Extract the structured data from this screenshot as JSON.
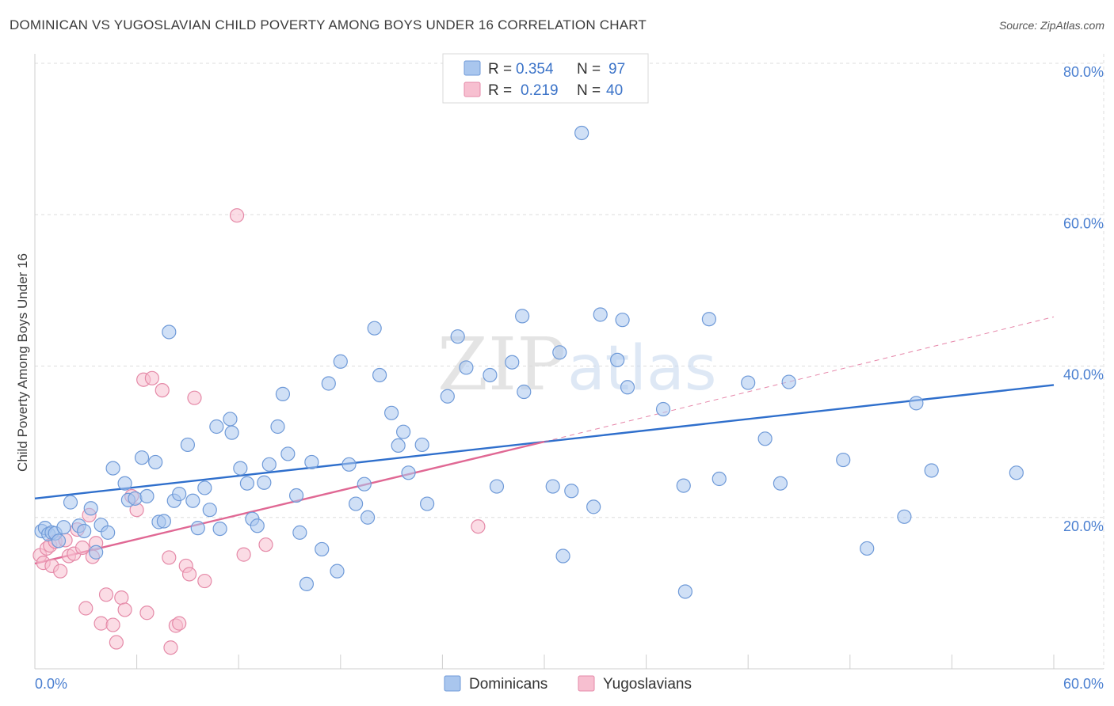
{
  "title": "DOMINICAN VS YUGOSLAVIAN CHILD POVERTY AMONG BOYS UNDER 16 CORRELATION CHART",
  "source": "Source: ZipAtlas.com",
  "watermark": {
    "zip": "ZIP",
    "atlas": "atlas"
  },
  "colors": {
    "dominicans_fill": "#a9c6ee",
    "dominicans_stroke": "#6f9ad8",
    "dominicans_line": "#2f6fcc",
    "yugoslavians_fill": "#f7bfd0",
    "yugoslavians_stroke": "#e58aa8",
    "yugoslavians_line": "#e06894",
    "tick_label": "#4a7fd0",
    "grid": "#dddddd"
  },
  "legend": {
    "rows": [
      {
        "r_label": "R =",
        "r_value": "0.354",
        "n_label": "N =",
        "n_value": "97"
      },
      {
        "r_label": "R =",
        "r_value": "0.219",
        "n_label": "N =",
        "n_value": "40"
      }
    ]
  },
  "bottom_legend": [
    "Dominicans",
    "Yugoslavians"
  ],
  "chart_data": {
    "type": "scatter",
    "title": "DOMINICAN VS YUGOSLAVIAN CHILD POVERTY AMONG BOYS UNDER 16 CORRELATION CHART",
    "xlabel": "",
    "ylabel": "Child Poverty Among Boys Under 16",
    "xlim": [
      0,
      60
    ],
    "ylim": [
      0,
      80
    ],
    "x_tick_labels": [
      "0.0%",
      "60.0%"
    ],
    "y_ticks": [
      20,
      40,
      60,
      80
    ],
    "y_tick_labels": [
      "20.0%",
      "40.0%",
      "60.0%",
      "80.0%"
    ],
    "grid": true,
    "legend_position": "top-center",
    "series": [
      {
        "name": "Dominicans",
        "points": [
          [
            0.4,
            18.2
          ],
          [
            0.6,
            18.6
          ],
          [
            0.8,
            17.8
          ],
          [
            1.0,
            18.0
          ],
          [
            1.2,
            17.9
          ],
          [
            1.4,
            16.9
          ],
          [
            1.7,
            18.7
          ],
          [
            2.1,
            22.0
          ],
          [
            2.6,
            18.9
          ],
          [
            2.9,
            18.2
          ],
          [
            3.3,
            21.2
          ],
          [
            3.6,
            15.4
          ],
          [
            3.9,
            19.0
          ],
          [
            4.3,
            18.0
          ],
          [
            4.6,
            26.5
          ],
          [
            5.3,
            24.5
          ],
          [
            5.5,
            22.3
          ],
          [
            5.9,
            22.5
          ],
          [
            6.3,
            27.9
          ],
          [
            6.6,
            22.8
          ],
          [
            7.1,
            27.3
          ],
          [
            7.3,
            19.4
          ],
          [
            7.6,
            19.5
          ],
          [
            7.9,
            44.5
          ],
          [
            8.2,
            22.2
          ],
          [
            8.5,
            23.1
          ],
          [
            9.0,
            29.6
          ],
          [
            9.3,
            22.2
          ],
          [
            9.6,
            18.6
          ],
          [
            10.0,
            23.9
          ],
          [
            10.3,
            21.0
          ],
          [
            10.7,
            32.0
          ],
          [
            10.9,
            18.5
          ],
          [
            11.5,
            33.0
          ],
          [
            11.6,
            31.2
          ],
          [
            12.1,
            26.5
          ],
          [
            12.5,
            24.5
          ],
          [
            12.8,
            19.8
          ],
          [
            13.1,
            18.9
          ],
          [
            13.5,
            24.6
          ],
          [
            13.8,
            27.0
          ],
          [
            14.3,
            32.0
          ],
          [
            14.6,
            36.3
          ],
          [
            14.9,
            28.4
          ],
          [
            15.4,
            22.9
          ],
          [
            15.6,
            18.0
          ],
          [
            16.0,
            11.2
          ],
          [
            16.3,
            27.3
          ],
          [
            16.9,
            15.8
          ],
          [
            17.3,
            37.7
          ],
          [
            17.8,
            12.9
          ],
          [
            18.0,
            40.6
          ],
          [
            18.5,
            27.0
          ],
          [
            18.9,
            21.8
          ],
          [
            19.4,
            24.4
          ],
          [
            19.6,
            20.0
          ],
          [
            20.0,
            45.0
          ],
          [
            20.3,
            38.8
          ],
          [
            21.0,
            33.8
          ],
          [
            21.4,
            29.5
          ],
          [
            21.7,
            31.3
          ],
          [
            22.0,
            25.9
          ],
          [
            22.8,
            29.6
          ],
          [
            23.1,
            21.8
          ],
          [
            24.3,
            36.0
          ],
          [
            24.9,
            43.9
          ],
          [
            25.4,
            39.8
          ],
          [
            26.8,
            38.8
          ],
          [
            27.2,
            24.1
          ],
          [
            28.1,
            40.5
          ],
          [
            28.7,
            46.6
          ],
          [
            28.8,
            36.6
          ],
          [
            30.5,
            24.1
          ],
          [
            30.9,
            41.8
          ],
          [
            31.1,
            14.9
          ],
          [
            31.6,
            23.5
          ],
          [
            32.2,
            70.8
          ],
          [
            32.9,
            21.4
          ],
          [
            33.3,
            46.8
          ],
          [
            34.3,
            40.8
          ],
          [
            34.6,
            46.1
          ],
          [
            34.9,
            37.2
          ],
          [
            37.0,
            34.3
          ],
          [
            38.2,
            24.2
          ],
          [
            38.3,
            10.2
          ],
          [
            39.7,
            46.2
          ],
          [
            40.3,
            25.1
          ],
          [
            42.0,
            37.8
          ],
          [
            43.0,
            30.4
          ],
          [
            43.9,
            24.5
          ],
          [
            44.4,
            37.9
          ],
          [
            47.6,
            27.6
          ],
          [
            49.0,
            15.9
          ],
          [
            51.2,
            20.1
          ],
          [
            51.9,
            35.1
          ],
          [
            52.8,
            26.2
          ],
          [
            57.8,
            25.9
          ]
        ]
      },
      {
        "name": "Yugoslavians",
        "points": [
          [
            0.3,
            15.0
          ],
          [
            0.5,
            14.0
          ],
          [
            0.7,
            15.9
          ],
          [
            0.9,
            16.3
          ],
          [
            1.0,
            13.6
          ],
          [
            1.2,
            16.8
          ],
          [
            1.5,
            12.9
          ],
          [
            1.8,
            17.0
          ],
          [
            2.0,
            14.9
          ],
          [
            2.3,
            15.2
          ],
          [
            2.5,
            18.4
          ],
          [
            2.8,
            16.0
          ],
          [
            3.0,
            8.0
          ],
          [
            3.2,
            20.3
          ],
          [
            3.4,
            14.8
          ],
          [
            3.6,
            16.6
          ],
          [
            3.9,
            6.0
          ],
          [
            4.2,
            9.8
          ],
          [
            4.6,
            5.8
          ],
          [
            4.8,
            3.5
          ],
          [
            5.1,
            9.4
          ],
          [
            5.3,
            7.8
          ],
          [
            5.7,
            22.8
          ],
          [
            6.0,
            21.0
          ],
          [
            6.4,
            38.2
          ],
          [
            6.9,
            38.4
          ],
          [
            7.5,
            36.8
          ],
          [
            7.9,
            14.7
          ],
          [
            8.0,
            2.8
          ],
          [
            8.3,
            5.7
          ],
          [
            8.5,
            6.0
          ],
          [
            8.9,
            13.6
          ],
          [
            9.1,
            12.5
          ],
          [
            9.4,
            35.8
          ],
          [
            10.0,
            11.6
          ],
          [
            11.9,
            59.9
          ],
          [
            12.3,
            15.1
          ],
          [
            13.6,
            16.4
          ],
          [
            26.1,
            18.8
          ],
          [
            6.6,
            7.4
          ]
        ]
      }
    ],
    "trend_lines": [
      {
        "series": "Dominicans",
        "x": [
          0,
          60
        ],
        "y": [
          22.5,
          37.5
        ],
        "style": "solid"
      },
      {
        "series": "Yugoslavians",
        "x": [
          0,
          30
        ],
        "y": [
          13.9,
          30.0
        ],
        "style": "solid"
      },
      {
        "series": "Yugoslavians",
        "x": [
          30,
          60
        ],
        "y": [
          30.0,
          46.5
        ],
        "style": "dashed"
      }
    ]
  }
}
